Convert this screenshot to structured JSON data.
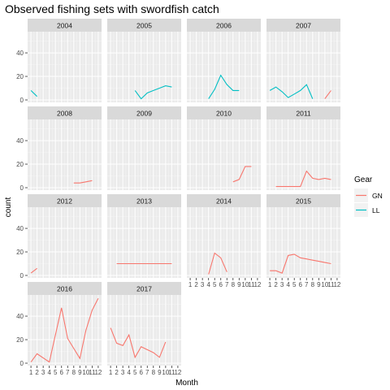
{
  "chart_data": {
    "type": "line",
    "title": "Observed fishing sets with swordfish catch",
    "xlabel": "Month",
    "ylabel": "count",
    "x_ticks": [
      "1",
      "2",
      "3",
      "4",
      "5",
      "6",
      "7",
      "8",
      "9",
      "10",
      "11",
      "12"
    ],
    "x_range": [
      1,
      12
    ],
    "y_ticks_row": [
      [
        "0",
        "20",
        "40"
      ],
      [
        "0",
        "20",
        "40"
      ],
      [
        "0",
        "20",
        "40"
      ],
      [
        "0",
        "20",
        "40"
      ]
    ],
    "facet_rows": [
      {
        "ylim": [
          0,
          58
        ],
        "facets": [
          "2004",
          "2005",
          "2006",
          "2007"
        ]
      },
      {
        "ylim": [
          0,
          58
        ],
        "facets": [
          "2008",
          "2009",
          "2010",
          "2011"
        ]
      },
      {
        "ylim": [
          0,
          58
        ],
        "facets": [
          "2012",
          "2013",
          "2014",
          "2015"
        ]
      },
      {
        "ylim": [
          0,
          58
        ],
        "facets": [
          "2016",
          "2017"
        ]
      }
    ],
    "legend": {
      "title": "Gear",
      "position": "right",
      "entries": [
        {
          "name": "GN",
          "color": "#F8766D"
        },
        {
          "name": "LL",
          "color": "#00BFC4"
        }
      ]
    },
    "grid": true,
    "panels": {
      "2004": {
        "LL": [
          [
            1,
            8
          ],
          [
            2,
            3
          ]
        ]
      },
      "2005": {
        "LL": [
          [
            5,
            8
          ],
          [
            6,
            1
          ],
          [
            7,
            6
          ],
          [
            8,
            8
          ],
          [
            9,
            10
          ],
          [
            10,
            12
          ],
          [
            11,
            11
          ]
        ]
      },
      "2006": {
        "LL": [
          [
            4,
            1
          ],
          [
            5,
            9
          ],
          [
            6,
            21
          ],
          [
            7,
            13
          ],
          [
            8,
            8
          ],
          [
            9,
            8
          ]
        ]
      },
      "2007": {
        "LL": [
          [
            1,
            8
          ],
          [
            2,
            11
          ],
          [
            3,
            7
          ],
          [
            4,
            2
          ],
          [
            5,
            5
          ],
          [
            6,
            8
          ],
          [
            7,
            13
          ],
          [
            8,
            1
          ]
        ],
        "GN": [
          [
            10,
            1
          ],
          [
            11,
            8
          ]
        ]
      },
      "2008": {
        "GN": [
          [
            8,
            4
          ],
          [
            9,
            4
          ],
          [
            10,
            5
          ],
          [
            11,
            6
          ]
        ]
      },
      "2009": {},
      "2010": {
        "GN": [
          [
            8,
            5
          ],
          [
            9,
            7
          ],
          [
            10,
            18
          ],
          [
            11,
            18
          ]
        ]
      },
      "2011": {
        "GN": [
          [
            2,
            1
          ],
          [
            3,
            1
          ],
          [
            4,
            1
          ],
          [
            5,
            1
          ],
          [
            6,
            1
          ],
          [
            7,
            14
          ],
          [
            8,
            8
          ],
          [
            9,
            7
          ],
          [
            10,
            8
          ],
          [
            11,
            7
          ]
        ]
      },
      "2012": {
        "GN": [
          [
            1,
            2
          ],
          [
            2,
            6
          ]
        ]
      },
      "2013": {
        "GN": [
          [
            2,
            10
          ],
          [
            3,
            10
          ],
          [
            4,
            10
          ],
          [
            5,
            10
          ],
          [
            6,
            10
          ],
          [
            7,
            10
          ],
          [
            8,
            10
          ],
          [
            9,
            10
          ],
          [
            10,
            10
          ],
          [
            11,
            10
          ]
        ]
      },
      "2014": {
        "GN": [
          [
            4,
            1
          ],
          [
            5,
            19
          ],
          [
            6,
            15
          ],
          [
            7,
            3
          ]
        ]
      },
      "2015": {
        "GN": [
          [
            1,
            4
          ],
          [
            2,
            4
          ],
          [
            3,
            2
          ],
          [
            4,
            17
          ],
          [
            5,
            18
          ],
          [
            6,
            15
          ],
          [
            7,
            14
          ],
          [
            8,
            13
          ],
          [
            9,
            12
          ],
          [
            10,
            11
          ],
          [
            11,
            10
          ]
        ]
      },
      "2016": {
        "GN": [
          [
            1,
            1
          ],
          [
            2,
            8
          ],
          [
            4,
            1
          ],
          [
            6,
            47
          ],
          [
            7,
            21
          ],
          [
            9,
            4
          ],
          [
            10,
            28
          ],
          [
            11,
            45
          ],
          [
            12,
            55
          ]
        ]
      },
      "2017": {
        "GN": [
          [
            1,
            30
          ],
          [
            2,
            17
          ],
          [
            3,
            15
          ],
          [
            4,
            24
          ],
          [
            5,
            5
          ],
          [
            6,
            14
          ],
          [
            8,
            9
          ],
          [
            9,
            5
          ],
          [
            10,
            18
          ]
        ]
      }
    }
  }
}
